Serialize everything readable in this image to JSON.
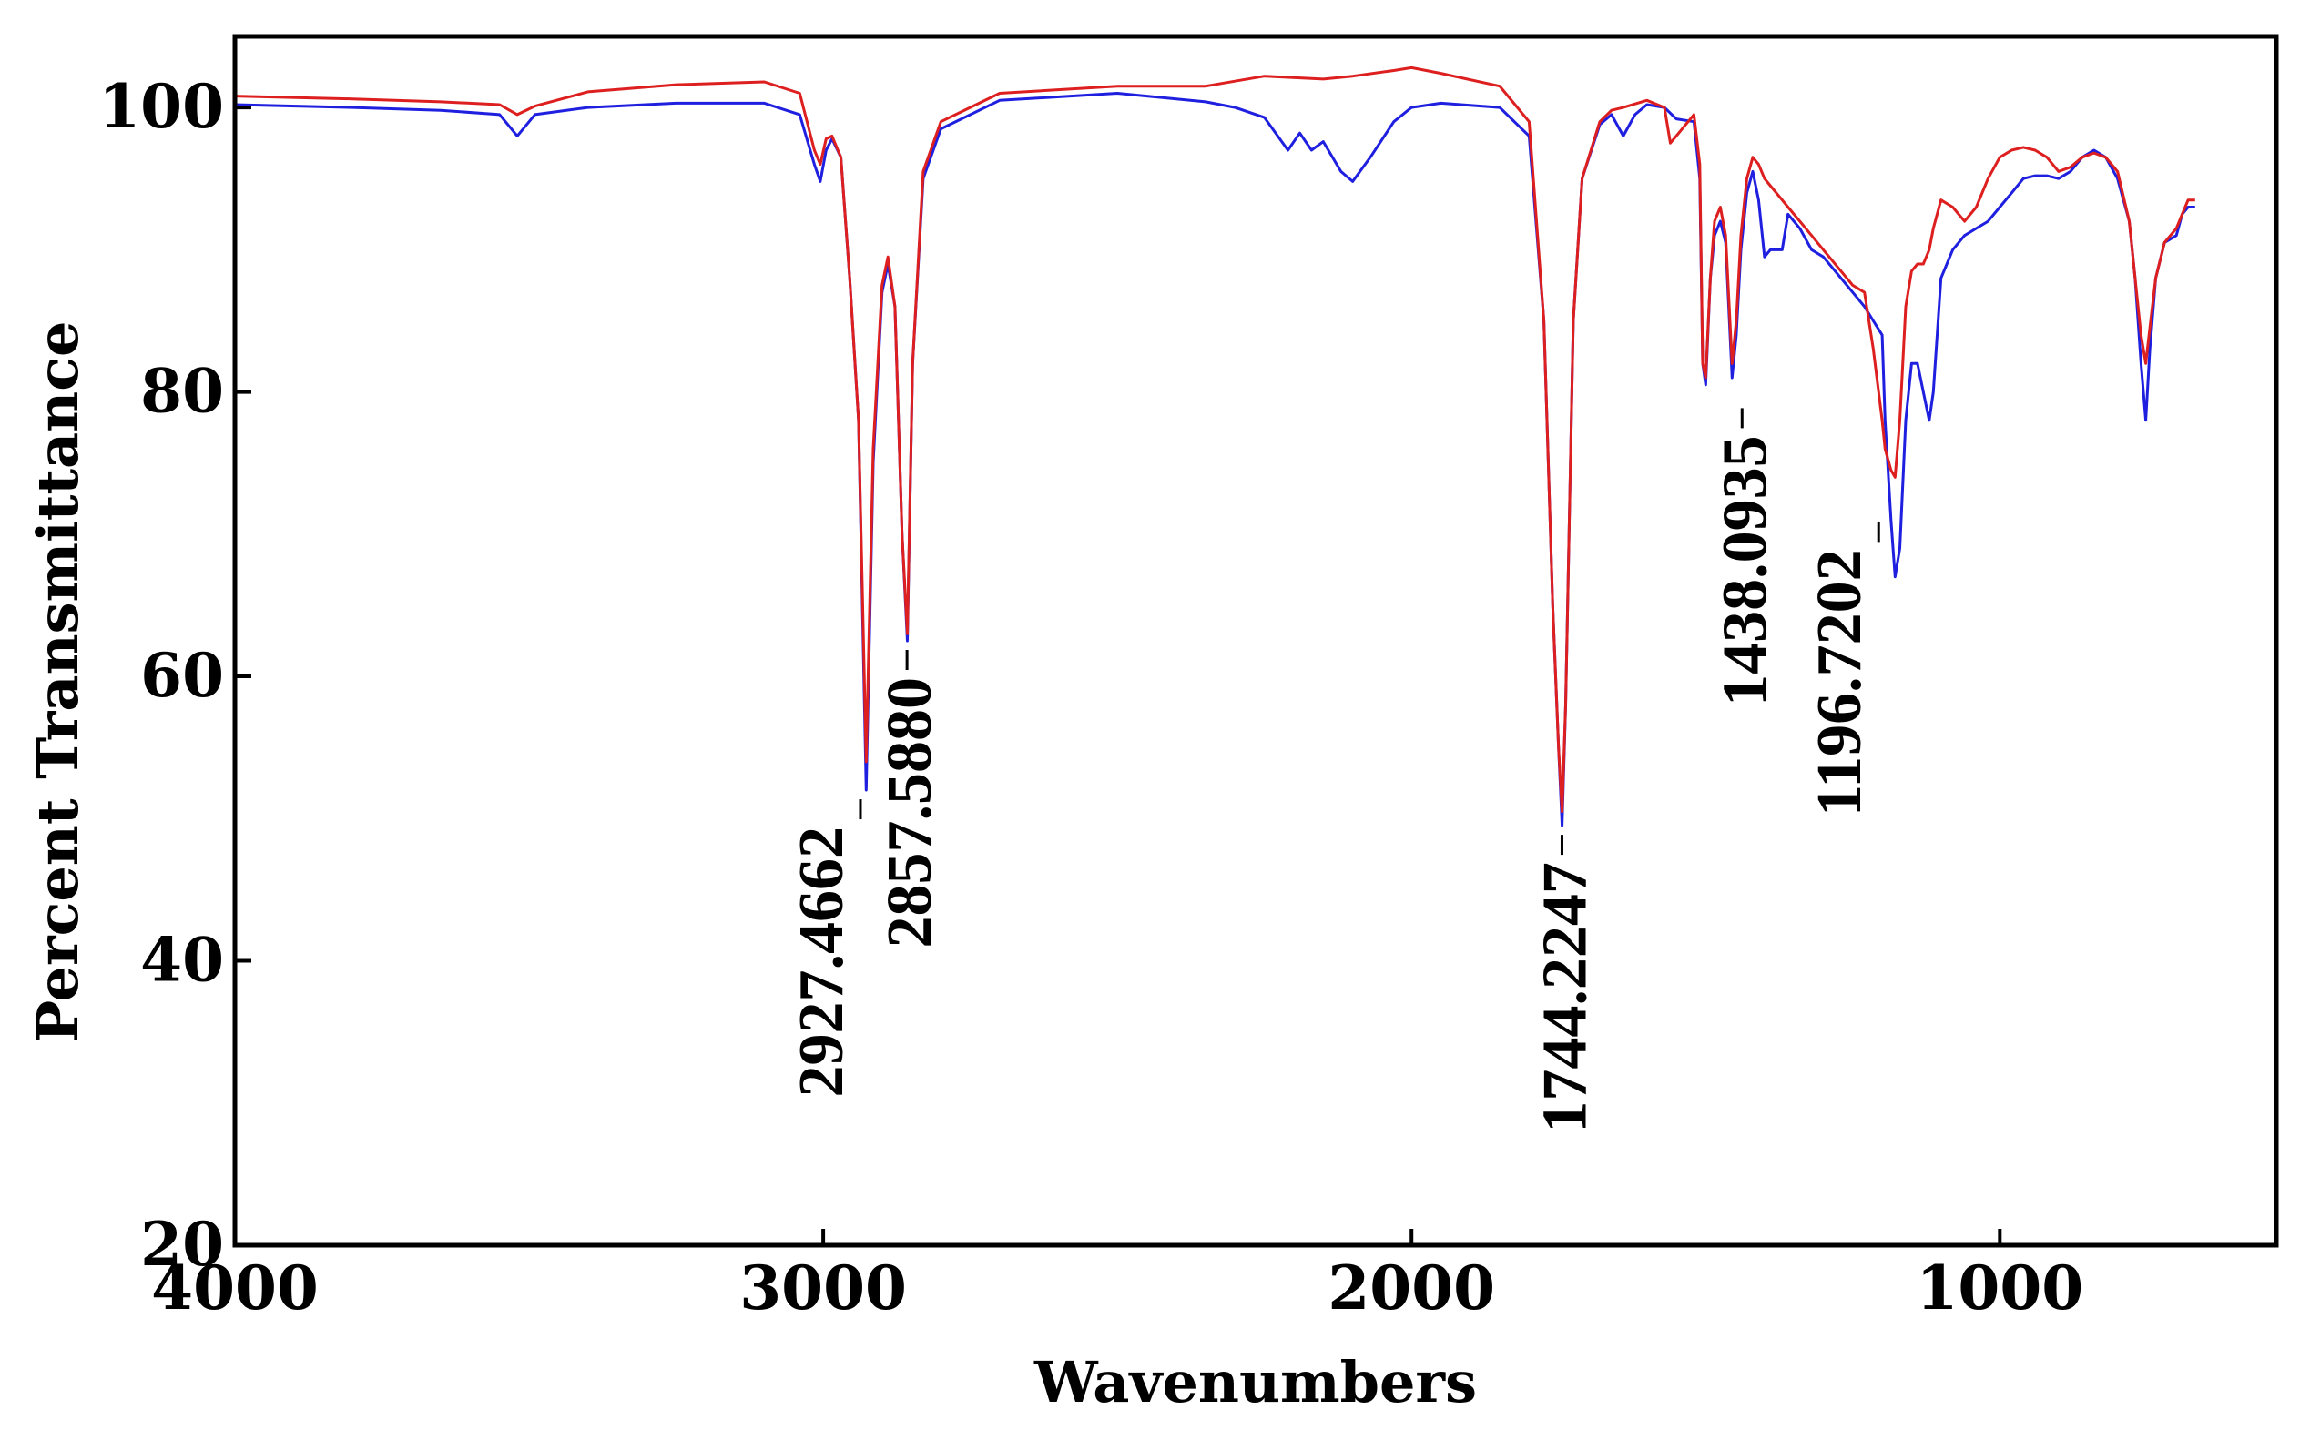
{
  "chart_data": {
    "type": "line",
    "title": "",
    "xlabel": "Wavenumbers",
    "ylabel": "Percent Transmittance",
    "xlim": [
      4000,
      530
    ],
    "ylim": [
      20,
      105
    ],
    "x_reversed": true,
    "grid": false,
    "x_ticks": [
      {
        "value": 4000,
        "label": "4000"
      },
      {
        "value": 3000,
        "label": "3000"
      },
      {
        "value": 2000,
        "label": "2000"
      },
      {
        "value": 1000,
        "label": "1000"
      }
    ],
    "y_ticks": [
      {
        "value": 100,
        "label": "100"
      },
      {
        "value": 80,
        "label": "80"
      },
      {
        "value": 60,
        "label": "60"
      },
      {
        "value": 40,
        "label": "40"
      },
      {
        "value": 20,
        "label": "20"
      }
    ],
    "series": [
      {
        "name": "blue",
        "color": "#1f1fe0",
        "points": [
          [
            4000,
            100.2
          ],
          [
            3800,
            100.0
          ],
          [
            3650,
            99.8
          ],
          [
            3550,
            99.5
          ],
          [
            3520,
            98.0
          ],
          [
            3490,
            99.5
          ],
          [
            3400,
            100.0
          ],
          [
            3250,
            100.3
          ],
          [
            3100,
            100.3
          ],
          [
            3040,
            99.5
          ],
          [
            3015,
            96.0
          ],
          [
            3005,
            94.8
          ],
          [
            2995,
            97.0
          ],
          [
            2985,
            97.8
          ],
          [
            2970,
            96.5
          ],
          [
            2955,
            88.0
          ],
          [
            2940,
            78.0
          ],
          [
            2927,
            52.0
          ],
          [
            2915,
            75.0
          ],
          [
            2900,
            87.0
          ],
          [
            2890,
            89.0
          ],
          [
            2878,
            86.0
          ],
          [
            2866,
            70.0
          ],
          [
            2857,
            62.5
          ],
          [
            2848,
            82.0
          ],
          [
            2830,
            95.0
          ],
          [
            2800,
            98.5
          ],
          [
            2700,
            100.5
          ],
          [
            2500,
            101.0
          ],
          [
            2350,
            100.4
          ],
          [
            2300,
            100.0
          ],
          [
            2250,
            99.3
          ],
          [
            2210,
            97.0
          ],
          [
            2190,
            98.2
          ],
          [
            2170,
            97.0
          ],
          [
            2150,
            97.6
          ],
          [
            2120,
            95.5
          ],
          [
            2100,
            94.8
          ],
          [
            2070,
            96.5
          ],
          [
            2030,
            99.0
          ],
          [
            2000,
            100.0
          ],
          [
            1950,
            100.3
          ],
          [
            1850,
            100.0
          ],
          [
            1800,
            98.0
          ],
          [
            1775,
            85.0
          ],
          [
            1760,
            65.0
          ],
          [
            1750,
            55.0
          ],
          [
            1744,
            49.5
          ],
          [
            1738,
            58.0
          ],
          [
            1725,
            85.0
          ],
          [
            1710,
            95.0
          ],
          [
            1680,
            98.8
          ],
          [
            1660,
            99.5
          ],
          [
            1640,
            98.0
          ],
          [
            1620,
            99.5
          ],
          [
            1600,
            100.2
          ],
          [
            1570,
            100.0
          ],
          [
            1550,
            99.2
          ],
          [
            1520,
            99.0
          ],
          [
            1510,
            95.0
          ],
          [
            1505,
            82.0
          ],
          [
            1500,
            80.5
          ],
          [
            1492,
            88.0
          ],
          [
            1485,
            91.0
          ],
          [
            1475,
            92.0
          ],
          [
            1466,
            90.5
          ],
          [
            1455,
            81.0
          ],
          [
            1448,
            84.0
          ],
          [
            1440,
            90.0
          ],
          [
            1430,
            94.0
          ],
          [
            1420,
            95.5
          ],
          [
            1410,
            93.5
          ],
          [
            1400,
            89.5
          ],
          [
            1390,
            90.0
          ],
          [
            1370,
            90.0
          ],
          [
            1360,
            92.5
          ],
          [
            1340,
            91.5
          ],
          [
            1320,
            90.0
          ],
          [
            1300,
            89.5
          ],
          [
            1270,
            88.0
          ],
          [
            1250,
            87.0
          ],
          [
            1230,
            86.0
          ],
          [
            1215,
            85.0
          ],
          [
            1200,
            84.0
          ],
          [
            1195,
            78.0
          ],
          [
            1185,
            71.0
          ],
          [
            1178,
            67.0
          ],
          [
            1170,
            69.0
          ],
          [
            1160,
            78.0
          ],
          [
            1150,
            82.0
          ],
          [
            1140,
            82.0
          ],
          [
            1130,
            80.0
          ],
          [
            1120,
            78.0
          ],
          [
            1113,
            80.0
          ],
          [
            1100,
            88.0
          ],
          [
            1080,
            90.0
          ],
          [
            1060,
            91.0
          ],
          [
            1040,
            91.5
          ],
          [
            1020,
            92.0
          ],
          [
            1000,
            93.0
          ],
          [
            980,
            94.0
          ],
          [
            960,
            95.0
          ],
          [
            940,
            95.2
          ],
          [
            920,
            95.2
          ],
          [
            900,
            95.0
          ],
          [
            880,
            95.5
          ],
          [
            860,
            96.5
          ],
          [
            840,
            97.0
          ],
          [
            820,
            96.5
          ],
          [
            800,
            95.0
          ],
          [
            780,
            92.0
          ],
          [
            770,
            88.0
          ],
          [
            760,
            82.0
          ],
          [
            752,
            78.0
          ],
          [
            745,
            83.0
          ],
          [
            735,
            88.0
          ],
          [
            720,
            90.5
          ],
          [
            700,
            91.0
          ],
          [
            690,
            92.5
          ],
          [
            680,
            93.0
          ],
          [
            668,
            93.0
          ]
        ]
      },
      {
        "name": "red",
        "color": "#dd1f1f",
        "points": [
          [
            4000,
            100.8
          ],
          [
            3800,
            100.6
          ],
          [
            3650,
            100.4
          ],
          [
            3550,
            100.2
          ],
          [
            3520,
            99.5
          ],
          [
            3490,
            100.1
          ],
          [
            3400,
            101.1
          ],
          [
            3250,
            101.6
          ],
          [
            3100,
            101.8
          ],
          [
            3040,
            101.0
          ],
          [
            3015,
            97.0
          ],
          [
            3005,
            96.0
          ],
          [
            2995,
            97.8
          ],
          [
            2985,
            98.0
          ],
          [
            2970,
            96.5
          ],
          [
            2955,
            88.0
          ],
          [
            2940,
            78.0
          ],
          [
            2927,
            54.0
          ],
          [
            2915,
            76.0
          ],
          [
            2900,
            87.5
          ],
          [
            2890,
            89.5
          ],
          [
            2878,
            86.0
          ],
          [
            2866,
            70.0
          ],
          [
            2857,
            63.0
          ],
          [
            2848,
            82.0
          ],
          [
            2830,
            95.5
          ],
          [
            2800,
            99.0
          ],
          [
            2700,
            101.0
          ],
          [
            2500,
            101.5
          ],
          [
            2350,
            101.5
          ],
          [
            2250,
            102.2
          ],
          [
            2150,
            102.0
          ],
          [
            2100,
            102.2
          ],
          [
            2030,
            102.6
          ],
          [
            2000,
            102.8
          ],
          [
            1950,
            102.4
          ],
          [
            1850,
            101.5
          ],
          [
            1800,
            99.0
          ],
          [
            1775,
            85.0
          ],
          [
            1760,
            65.0
          ],
          [
            1750,
            55.0
          ],
          [
            1744,
            50.5
          ],
          [
            1738,
            58.0
          ],
          [
            1725,
            85.0
          ],
          [
            1710,
            95.0
          ],
          [
            1680,
            99.0
          ],
          [
            1660,
            99.8
          ],
          [
            1640,
            100.0
          ],
          [
            1600,
            100.5
          ],
          [
            1570,
            100.0
          ],
          [
            1560,
            97.5
          ],
          [
            1550,
            98.0
          ],
          [
            1520,
            99.5
          ],
          [
            1510,
            96.0
          ],
          [
            1505,
            82.0
          ],
          [
            1500,
            81.0
          ],
          [
            1492,
            88.0
          ],
          [
            1485,
            92.0
          ],
          [
            1475,
            93.0
          ],
          [
            1466,
            91.0
          ],
          [
            1455,
            82.0
          ],
          [
            1448,
            85.0
          ],
          [
            1440,
            91.0
          ],
          [
            1430,
            95.0
          ],
          [
            1420,
            96.5
          ],
          [
            1410,
            96.0
          ],
          [
            1400,
            95.0
          ],
          [
            1390,
            94.5
          ],
          [
            1370,
            93.5
          ],
          [
            1360,
            93.0
          ],
          [
            1340,
            92.0
          ],
          [
            1320,
            91.0
          ],
          [
            1300,
            90.0
          ],
          [
            1270,
            88.5
          ],
          [
            1250,
            87.5
          ],
          [
            1230,
            87.0
          ],
          [
            1215,
            83.0
          ],
          [
            1200,
            78.0
          ],
          [
            1195,
            76.0
          ],
          [
            1185,
            74.5
          ],
          [
            1178,
            74.0
          ],
          [
            1170,
            78.0
          ],
          [
            1160,
            86.0
          ],
          [
            1150,
            88.5
          ],
          [
            1140,
            89.0
          ],
          [
            1130,
            89.0
          ],
          [
            1120,
            90.0
          ],
          [
            1113,
            91.5
          ],
          [
            1100,
            93.5
          ],
          [
            1080,
            93.0
          ],
          [
            1060,
            92.0
          ],
          [
            1040,
            93.0
          ],
          [
            1020,
            95.0
          ],
          [
            1000,
            96.5
          ],
          [
            980,
            97.0
          ],
          [
            960,
            97.2
          ],
          [
            940,
            97.0
          ],
          [
            920,
            96.5
          ],
          [
            900,
            95.5
          ],
          [
            880,
            95.8
          ],
          [
            860,
            96.5
          ],
          [
            840,
            96.8
          ],
          [
            820,
            96.5
          ],
          [
            800,
            95.5
          ],
          [
            780,
            92.0
          ],
          [
            770,
            88.0
          ],
          [
            760,
            84.0
          ],
          [
            752,
            82.0
          ],
          [
            745,
            84.5
          ],
          [
            735,
            88.0
          ],
          [
            720,
            90.5
          ],
          [
            700,
            91.5
          ],
          [
            690,
            92.5
          ],
          [
            680,
            93.5
          ],
          [
            668,
            93.5
          ]
        ]
      }
    ],
    "peak_annotations": [
      {
        "label": "2927.4662",
        "x": 2927.4662,
        "y": 52.0
      },
      {
        "label": "2857.5880",
        "x": 2857.588,
        "y": 62.5
      },
      {
        "label": "1744.2247",
        "x": 1744.2247,
        "y": 49.5
      },
      {
        "label": "1438.0935",
        "x": 1438.0935,
        "y": 79.5
      },
      {
        "label": "1196.7202",
        "x": 1196.7202,
        "y": 71.5
      }
    ]
  }
}
